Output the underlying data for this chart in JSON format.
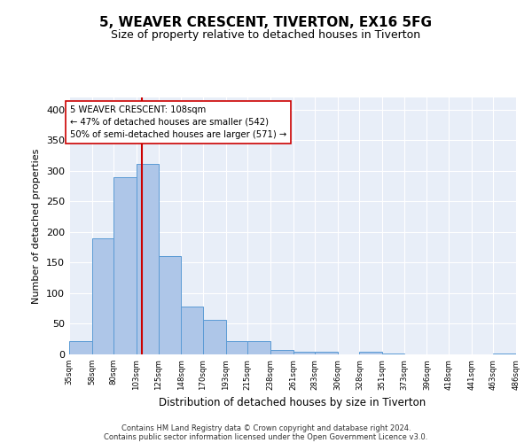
{
  "title": "5, WEAVER CRESCENT, TIVERTON, EX16 5FG",
  "subtitle": "Size of property relative to detached houses in Tiverton",
  "xlabel": "Distribution of detached houses by size in Tiverton",
  "ylabel": "Number of detached properties",
  "property_size": 108,
  "property_label": "5 WEAVER CRESCENT: 108sqm",
  "annotation_line1": "← 47% of detached houses are smaller (542)",
  "annotation_line2": "50% of semi-detached houses are larger (571) →",
  "bar_edges": [
    35,
    58,
    80,
    103,
    125,
    148,
    170,
    193,
    215,
    238,
    261,
    283,
    306,
    328,
    351,
    373,
    396,
    418,
    441,
    463,
    486
  ],
  "bar_heights": [
    22,
    190,
    290,
    311,
    161,
    78,
    57,
    22,
    22,
    7,
    5,
    4,
    0,
    4,
    2,
    0,
    0,
    0,
    0,
    1
  ],
  "bar_color": "#aec6e8",
  "bar_edge_color": "#5b9bd5",
  "vline_x": 108,
  "vline_color": "#cc0000",
  "tick_labels": [
    "35sqm",
    "58sqm",
    "80sqm",
    "103sqm",
    "125sqm",
    "148sqm",
    "170sqm",
    "193sqm",
    "215sqm",
    "238sqm",
    "261sqm",
    "283sqm",
    "306sqm",
    "328sqm",
    "351sqm",
    "373sqm",
    "396sqm",
    "418sqm",
    "441sqm",
    "463sqm",
    "486sqm"
  ],
  "ylim": [
    0,
    420
  ],
  "yticks": [
    0,
    50,
    100,
    150,
    200,
    250,
    300,
    350,
    400
  ],
  "background_color": "#e8eef8",
  "footer_line1": "Contains HM Land Registry data © Crown copyright and database right 2024.",
  "footer_line2": "Contains public sector information licensed under the Open Government Licence v3.0."
}
